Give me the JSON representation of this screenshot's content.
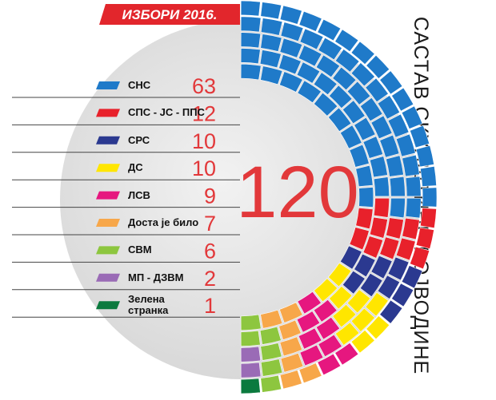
{
  "chart_data": {
    "type": "parliament",
    "title": "ИЗБОРИ 2016.",
    "subtitle": "САСТАВ СКУПШТИНЕ ВОЈВОДИНЕ",
    "total": 120,
    "categories": [
      "СНС",
      "СПС - ЈС - ППС",
      "СРС",
      "ДС",
      "ЛСВ",
      "Доста је било",
      "СВМ",
      "МП - ДЗВМ",
      "Зелена странка"
    ],
    "values": [
      63,
      12,
      10,
      10,
      9,
      7,
      6,
      2,
      1
    ],
    "colors": [
      "#1f7ac9",
      "#e8212b",
      "#2b3990",
      "#ffe600",
      "#e6177f",
      "#f7a74a",
      "#8dc63f",
      "#9a6bb6",
      "#0b7a3e"
    ]
  }
}
